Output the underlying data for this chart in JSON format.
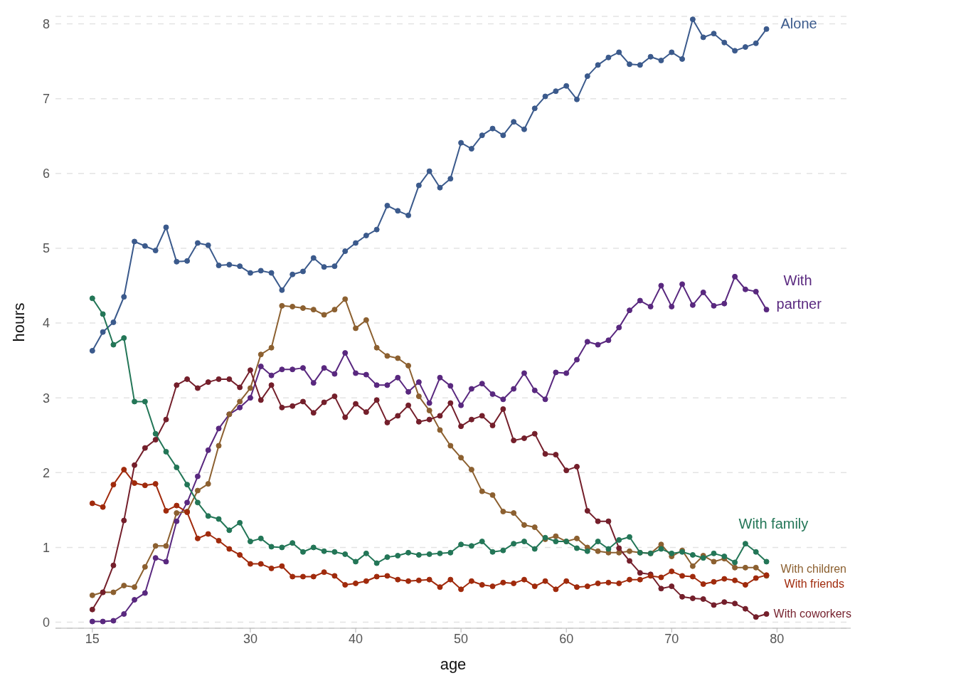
{
  "chart_data": {
    "type": "line",
    "xlabel": "age",
    "ylabel": "hours",
    "x": [
      15,
      16,
      17,
      18,
      19,
      20,
      21,
      22,
      23,
      24,
      25,
      26,
      27,
      28,
      29,
      30,
      31,
      32,
      33,
      34,
      35,
      36,
      37,
      38,
      39,
      40,
      41,
      42,
      43,
      44,
      45,
      46,
      47,
      48,
      49,
      50,
      51,
      52,
      53,
      54,
      55,
      56,
      57,
      58,
      59,
      60,
      61,
      62,
      63,
      64,
      65,
      66,
      67,
      68,
      69,
      70,
      71,
      72,
      73,
      74,
      75,
      76,
      77,
      78,
      79
    ],
    "xlim": [
      11.5,
      87
    ],
    "xticks": [
      15,
      30,
      40,
      50,
      60,
      70,
      80
    ],
    "ylim": [
      -0.08,
      8.1
    ],
    "yticks": [
      0,
      1,
      2,
      3,
      4,
      5,
      6,
      7,
      8
    ],
    "grid": "y",
    "legend": false,
    "marker": "circle",
    "line_style": "solid",
    "series": [
      {
        "name": "Alone",
        "color": "#3b5a8c",
        "values": [
          3.63,
          3.88,
          4.01,
          4.35,
          5.09,
          5.03,
          4.97,
          5.28,
          4.82,
          4.83,
          5.07,
          5.04,
          4.77,
          4.78,
          4.76,
          4.67,
          4.7,
          4.67,
          4.44,
          4.65,
          4.69,
          4.87,
          4.75,
          4.76,
          4.96,
          5.07,
          5.17,
          5.25,
          5.57,
          5.5,
          5.44,
          5.84,
          6.03,
          5.81,
          5.93,
          6.41,
          6.33,
          6.51,
          6.6,
          6.51,
          6.69,
          6.59,
          6.87,
          7.03,
          7.1,
          7.17,
          6.99,
          7.3,
          7.45,
          7.55,
          7.62,
          7.46,
          7.45,
          7.56,
          7.51,
          7.62,
          7.53,
          8.06,
          7.82,
          7.87,
          7.75,
          7.64,
          7.69,
          7.74,
          7.93
        ]
      },
      {
        "name": "With partner",
        "color": "#59287f",
        "values": [
          0.01,
          0.01,
          0.02,
          0.11,
          0.3,
          0.39,
          0.86,
          0.81,
          1.35,
          1.6,
          1.95,
          2.3,
          2.59,
          2.78,
          2.87,
          3.0,
          3.42,
          3.3,
          3.38,
          3.38,
          3.4,
          3.2,
          3.4,
          3.32,
          3.6,
          3.33,
          3.31,
          3.17,
          3.17,
          3.27,
          3.08,
          3.21,
          2.93,
          3.27,
          3.16,
          2.9,
          3.12,
          3.19,
          3.05,
          2.98,
          3.12,
          3.33,
          3.1,
          2.98,
          3.34,
          3.33,
          3.51,
          3.75,
          3.71,
          3.77,
          3.94,
          4.17,
          4.3,
          4.22,
          4.5,
          4.22,
          4.52,
          4.24,
          4.41,
          4.23,
          4.26,
          4.62,
          4.45,
          4.42,
          4.18
        ]
      },
      {
        "name": "With children",
        "color": "#8c6030",
        "values": [
          0.36,
          0.4,
          0.4,
          0.49,
          0.47,
          0.74,
          1.02,
          1.02,
          1.46,
          1.48,
          1.76,
          1.85,
          2.36,
          2.78,
          2.95,
          3.13,
          3.58,
          3.67,
          4.23,
          4.22,
          4.2,
          4.18,
          4.11,
          4.18,
          4.32,
          3.93,
          4.04,
          3.67,
          3.56,
          3.53,
          3.43,
          3.02,
          2.83,
          2.57,
          2.36,
          2.2,
          2.04,
          1.75,
          1.7,
          1.48,
          1.46,
          1.3,
          1.27,
          1.11,
          1.15,
          1.08,
          1.12,
          1.0,
          0.95,
          0.93,
          0.93,
          0.95,
          0.93,
          0.92,
          1.04,
          0.88,
          0.96,
          0.75,
          0.89,
          0.81,
          0.85,
          0.73,
          0.73,
          0.73,
          0.62
        ]
      },
      {
        "name": "With coworkers",
        "color": "#741f2b",
        "values": [
          0.17,
          0.4,
          0.76,
          1.36,
          2.1,
          2.33,
          2.44,
          2.71,
          3.17,
          3.25,
          3.13,
          3.21,
          3.25,
          3.25,
          3.14,
          3.37,
          2.97,
          3.17,
          2.87,
          2.89,
          2.95,
          2.8,
          2.94,
          3.02,
          2.74,
          2.92,
          2.81,
          2.97,
          2.67,
          2.76,
          2.9,
          2.68,
          2.71,
          2.76,
          2.93,
          2.62,
          2.71,
          2.76,
          2.63,
          2.85,
          2.43,
          2.46,
          2.52,
          2.25,
          2.24,
          2.03,
          2.08,
          1.49,
          1.35,
          1.35,
          0.99,
          0.82,
          0.66,
          0.64,
          0.45,
          0.48,
          0.34,
          0.32,
          0.31,
          0.23,
          0.27,
          0.25,
          0.18,
          0.07,
          0.11
        ]
      },
      {
        "name": "With family",
        "color": "#237657",
        "values": [
          4.33,
          4.12,
          3.71,
          3.8,
          2.95,
          2.95,
          2.52,
          2.28,
          2.07,
          1.84,
          1.6,
          1.42,
          1.38,
          1.23,
          1.33,
          1.08,
          1.12,
          1.01,
          1.0,
          1.06,
          0.94,
          1.0,
          0.95,
          0.94,
          0.91,
          0.81,
          0.92,
          0.79,
          0.87,
          0.89,
          0.93,
          0.9,
          0.91,
          0.92,
          0.93,
          1.04,
          1.02,
          1.08,
          0.94,
          0.96,
          1.05,
          1.08,
          0.98,
          1.13,
          1.08,
          1.08,
          0.99,
          0.95,
          1.08,
          0.98,
          1.1,
          1.14,
          0.93,
          0.92,
          0.98,
          0.92,
          0.94,
          0.9,
          0.86,
          0.92,
          0.88,
          0.8,
          1.05,
          0.94,
          0.81
        ]
      },
      {
        "name": "With friends",
        "color": "#a02a0c",
        "values": [
          1.59,
          1.54,
          1.84,
          2.04,
          1.86,
          1.83,
          1.85,
          1.49,
          1.56,
          1.47,
          1.12,
          1.18,
          1.09,
          0.98,
          0.9,
          0.78,
          0.78,
          0.72,
          0.75,
          0.61,
          0.61,
          0.61,
          0.67,
          0.62,
          0.5,
          0.52,
          0.55,
          0.61,
          0.62,
          0.57,
          0.55,
          0.56,
          0.57,
          0.47,
          0.57,
          0.44,
          0.55,
          0.5,
          0.48,
          0.53,
          0.52,
          0.57,
          0.48,
          0.55,
          0.44,
          0.55,
          0.47,
          0.48,
          0.52,
          0.53,
          0.52,
          0.57,
          0.57,
          0.62,
          0.6,
          0.68,
          0.62,
          0.61,
          0.51,
          0.54,
          0.58,
          0.56,
          0.5,
          0.59,
          0.63
        ]
      }
    ]
  }
}
